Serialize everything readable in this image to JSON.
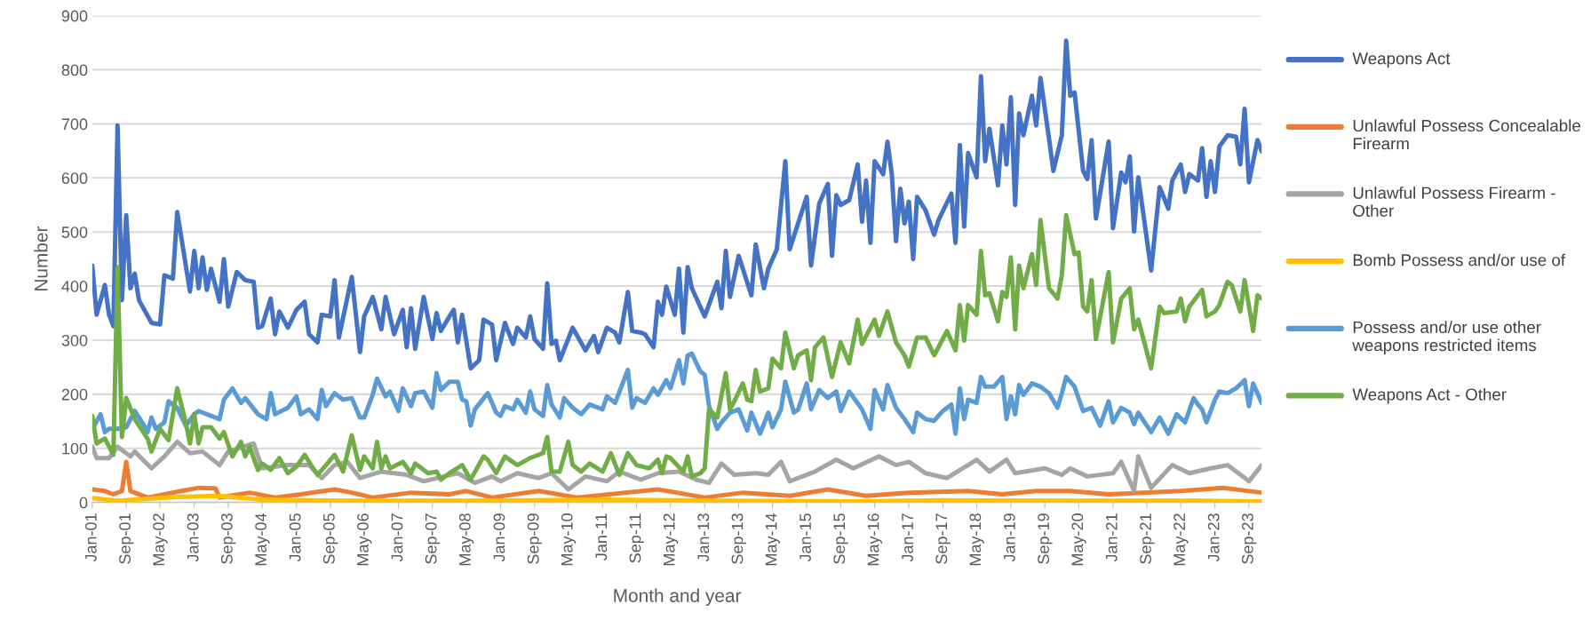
{
  "chart_data": {
    "type": "line",
    "xlabel": "Month and year",
    "ylabel": "Number",
    "ylim": [
      0,
      900
    ],
    "yticks": [
      0,
      100,
      200,
      300,
      400,
      500,
      600,
      700,
      800,
      900
    ],
    "xlim": [
      "2001-01",
      "2023-12"
    ],
    "xticks": [
      {
        "value": "2001-01",
        "label": "Jan-01"
      },
      {
        "value": "2001-09",
        "label": "Sep-01"
      },
      {
        "value": "2002-05",
        "label": "May-02"
      },
      {
        "value": "2003-01",
        "label": "Jan-03"
      },
      {
        "value": "2003-09",
        "label": "Sep-03"
      },
      {
        "value": "2004-05",
        "label": "May-04"
      },
      {
        "value": "2005-01",
        "label": "Jan-05"
      },
      {
        "value": "2005-09",
        "label": "Sep-05"
      },
      {
        "value": "2006-05",
        "label": "May-06"
      },
      {
        "value": "2007-01",
        "label": "Jan-07"
      },
      {
        "value": "2007-09",
        "label": "Sep-07"
      },
      {
        "value": "2008-05",
        "label": "May-08"
      },
      {
        "value": "2009-01",
        "label": "Jan-09"
      },
      {
        "value": "2009-09",
        "label": "Sep-09"
      },
      {
        "value": "2010-05",
        "label": "May-10"
      },
      {
        "value": "2011-01",
        "label": "Jan-11"
      },
      {
        "value": "2011-09",
        "label": "Sep-11"
      },
      {
        "value": "2012-05",
        "label": "May-12"
      },
      {
        "value": "2013-01",
        "label": "Jan-13"
      },
      {
        "value": "2013-09",
        "label": "Sep-13"
      },
      {
        "value": "2014-05",
        "label": "May-14"
      },
      {
        "value": "2015-01",
        "label": "Jan-15"
      },
      {
        "value": "2015-09",
        "label": "Sep-15"
      },
      {
        "value": "2016-05",
        "label": "May-16"
      },
      {
        "value": "2017-01",
        "label": "Jan-17"
      },
      {
        "value": "2017-09",
        "label": "Sep-17"
      },
      {
        "value": "2018-05",
        "label": "May-18"
      },
      {
        "value": "2019-01",
        "label": "Jan-19"
      },
      {
        "value": "2019-09",
        "label": "Sep-19"
      },
      {
        "value": "2020-05",
        "label": "May-20"
      },
      {
        "value": "2021-01",
        "label": "Jan-21"
      },
      {
        "value": "2021-09",
        "label": "Sep-21"
      },
      {
        "value": "2022-05",
        "label": "May-22"
      },
      {
        "value": "2023-01",
        "label": "Jan-23"
      },
      {
        "value": "2023-09",
        "label": "Sep-23"
      }
    ],
    "grid": "y",
    "legend": "right",
    "marker": "none",
    "line_style": "solid",
    "series": [
      {
        "name": "Weapons Act",
        "color": "#4472c4",
        "x": [
          "2001-01",
          "2001-02",
          "2001-04",
          "2001-05",
          "2001-06",
          "2001-07",
          "2001-08",
          "2001-09",
          "2001-10",
          "2001-11",
          "2001-12",
          "2002-03",
          "2002-05",
          "2002-06",
          "2002-08",
          "2002-09",
          "2002-12",
          "2003-01",
          "2003-02",
          "2003-03",
          "2003-04",
          "2003-05",
          "2003-07",
          "2003-08",
          "2003-09",
          "2003-11",
          "2004-01",
          "2004-03",
          "2004-04",
          "2004-05",
          "2004-07",
          "2004-08",
          "2004-09",
          "2004-11",
          "2005-01",
          "2005-03",
          "2005-04",
          "2005-06",
          "2005-07",
          "2005-09",
          "2005-10",
          "2005-11",
          "2006-02",
          "2006-04",
          "2006-05",
          "2006-07",
          "2006-09",
          "2006-10",
          "2006-12",
          "2007-02",
          "2007-03",
          "2007-04",
          "2007-05",
          "2007-07",
          "2007-09",
          "2007-10",
          "2007-11",
          "2008-01",
          "2008-02",
          "2008-03",
          "2008-04",
          "2008-06",
          "2008-08",
          "2008-09",
          "2008-11",
          "2008-12",
          "2009-02",
          "2009-04",
          "2009-05",
          "2009-07",
          "2009-08",
          "2009-09",
          "2009-11",
          "2009-12",
          "2010-01",
          "2010-02",
          "2010-03",
          "2010-06",
          "2010-09",
          "2010-11",
          "2010-12",
          "2011-02",
          "2011-04",
          "2011-05",
          "2011-07",
          "2011-08",
          "2011-10",
          "2011-11",
          "2012-01",
          "2012-02",
          "2012-03",
          "2012-04",
          "2012-06",
          "2012-07",
          "2012-08",
          "2012-09",
          "2012-10",
          "2013-01",
          "2013-04",
          "2013-05",
          "2013-06",
          "2013-07",
          "2013-09",
          "2013-12",
          "2014-01",
          "2014-03",
          "2014-04",
          "2014-06",
          "2014-08",
          "2014-09",
          "2015-01",
          "2015-02",
          "2015-04",
          "2015-06",
          "2015-07",
          "2015-08",
          "2015-09",
          "2015-11",
          "2016-01",
          "2016-02",
          "2016-03",
          "2016-04",
          "2016-05",
          "2016-07",
          "2016-08",
          "2016-09",
          "2016-10",
          "2016-11",
          "2016-12",
          "2017-01",
          "2017-02",
          "2017-03",
          "2017-05",
          "2017-07",
          "2017-08",
          "2017-11",
          "2017-12",
          "2018-01",
          "2018-02",
          "2018-03",
          "2018-05",
          "2018-06",
          "2018-07",
          "2018-08",
          "2018-10",
          "2018-11",
          "2018-12",
          "2019-01",
          "2019-02",
          "2019-03",
          "2019-04",
          "2019-06",
          "2019-07",
          "2019-08",
          "2019-10",
          "2019-11",
          "2020-01",
          "2020-02",
          "2020-03",
          "2020-04",
          "2020-06",
          "2020-07",
          "2020-08",
          "2020-09",
          "2020-12",
          "2021-01",
          "2021-03",
          "2021-04",
          "2021-05",
          "2021-06",
          "2021-07",
          "2021-10",
          "2021-12",
          "2022-02",
          "2022-03",
          "2022-05",
          "2022-06",
          "2022-07",
          "2022-09",
          "2022-10",
          "2022-11",
          "2022-12",
          "2023-01",
          "2023-02",
          "2023-04",
          "2023-06",
          "2023-07",
          "2023-08",
          "2023-09",
          "2023-11",
          "2023-12"
        ],
        "values": [
          438,
          347,
          402,
          347,
          326,
          697,
          374,
          531,
          396,
          423,
          374,
          332,
          329,
          420,
          414,
          537,
          390,
          465,
          396,
          453,
          393,
          432,
          371,
          450,
          362,
          426,
          411,
          408,
          323,
          326,
          377,
          311,
          353,
          323,
          356,
          371,
          311,
          296,
          347,
          344,
          411,
          305,
          417,
          278,
          344,
          380,
          320,
          380,
          311,
          356,
          287,
          359,
          284,
          380,
          302,
          350,
          317,
          344,
          356,
          296,
          347,
          248,
          263,
          338,
          329,
          263,
          332,
          293,
          323,
          305,
          344,
          302,
          284,
          405,
          293,
          299,
          263,
          323,
          281,
          308,
          278,
          323,
          314,
          296,
          389,
          317,
          314,
          311,
          287,
          371,
          347,
          399,
          347,
          432,
          314,
          435,
          396,
          344,
          408,
          359,
          465,
          380,
          456,
          383,
          477,
          396,
          432,
          468,
          631,
          468,
          565,
          438,
          553,
          589,
          456,
          568,
          550,
          559,
          625,
          519,
          595,
          480,
          631,
          607,
          667,
          607,
          483,
          580,
          516,
          556,
          450,
          565,
          540,
          495,
          522,
          571,
          480,
          661,
          510,
          646,
          601,
          788,
          631,
          691,
          586,
          697,
          625,
          749,
          550,
          719,
          679,
          752,
          697,
          785,
          673,
          613,
          679,
          854,
          752,
          758,
          613,
          598,
          670,
          525,
          667,
          507,
          610,
          592,
          640,
          501,
          601,
          429,
          583,
          543,
          595,
          625,
          574,
          607,
          595,
          655,
          565,
          631,
          574,
          658,
          679,
          676,
          625,
          728,
          592,
          670,
          649
        ]
      },
      {
        "name": "Unlawful Possess Concealable Firearm",
        "color": "#ed7d31",
        "x": [
          "2001-01",
          "2001-04",
          "2001-06",
          "2001-08",
          "2001-09",
          "2001-10",
          "2002-02",
          "2002-10",
          "2003-02",
          "2003-06",
          "2003-07",
          "2004-02",
          "2004-08",
          "2005-02",
          "2005-10",
          "2006-02",
          "2006-07",
          "2007-04",
          "2008-01",
          "2008-05",
          "2008-11",
          "2009-10",
          "2010-07",
          "2012-02",
          "2013-01",
          "2013-10",
          "2014-09",
          "2015-06",
          "2016-03",
          "2017-01",
          "2018-03",
          "2018-11",
          "2019-07",
          "2020-03",
          "2020-12",
          "2022-05",
          "2023-03",
          "2023-12"
        ],
        "values": [
          24,
          21,
          15,
          21,
          75,
          21,
          9,
          21,
          27,
          26,
          9,
          18,
          9,
          15,
          24,
          18,
          9,
          18,
          15,
          21,
          9,
          21,
          9,
          24,
          9,
          18,
          12,
          24,
          12,
          18,
          21,
          15,
          21,
          21,
          15,
          21,
          27,
          18
        ]
      },
      {
        "name": "Unlawful Possess Firearm - Other",
        "color": "#a5a5a5",
        "x": [
          "2001-01",
          "2001-02",
          "2001-05",
          "2001-07",
          "2001-10",
          "2001-11",
          "2002-03",
          "2002-06",
          "2002-09",
          "2002-12",
          "2003-03",
          "2003-07",
          "2003-09",
          "2004-03",
          "2004-05",
          "2004-11",
          "2005-04",
          "2005-07",
          "2005-10",
          "2006-01",
          "2006-04",
          "2006-09",
          "2007-03",
          "2007-07",
          "2008-03",
          "2008-07",
          "2008-11",
          "2009-01",
          "2009-05",
          "2009-10",
          "2010-01",
          "2010-05",
          "2010-09",
          "2011-02",
          "2011-05",
          "2011-10",
          "2012-02",
          "2012-07",
          "2012-11",
          "2013-02",
          "2013-05",
          "2013-08",
          "2014-01",
          "2014-04",
          "2014-07",
          "2014-09",
          "2015-03",
          "2015-08",
          "2015-12",
          "2016-06",
          "2016-10",
          "2017-01",
          "2017-05",
          "2017-10",
          "2018-05",
          "2018-08",
          "2018-12",
          "2019-02",
          "2019-09",
          "2020-01",
          "2020-03",
          "2020-07",
          "2021-01",
          "2021-03",
          "2021-06",
          "2021-07",
          "2021-10",
          "2022-03",
          "2022-07",
          "2022-12",
          "2023-04",
          "2023-09",
          "2023-12"
        ],
        "values": [
          103,
          82,
          82,
          103,
          85,
          94,
          63,
          85,
          112,
          91,
          94,
          69,
          94,
          109,
          63,
          69,
          69,
          45,
          69,
          75,
          45,
          57,
          51,
          39,
          54,
          36,
          48,
          39,
          54,
          45,
          54,
          24,
          48,
          39,
          57,
          42,
          54,
          57,
          42,
          36,
          72,
          51,
          54,
          51,
          75,
          39,
          57,
          79,
          63,
          85,
          69,
          75,
          54,
          45,
          79,
          57,
          79,
          54,
          63,
          51,
          63,
          48,
          54,
          75,
          21,
          85,
          27,
          69,
          54,
          63,
          69,
          39,
          69
        ]
      },
      {
        "name": "Bomb Possess and/or use of",
        "color": "#ffc000",
        "x": [
          "2001-01",
          "2001-07",
          "2002-09",
          "2003-07",
          "2004-05",
          "2006-01",
          "2008-07",
          "2011-01",
          "2013-07",
          "2016-01",
          "2017-09",
          "2020-03",
          "2022-09",
          "2023-12"
        ],
        "values": [
          8,
          3,
          10,
          12,
          5,
          3,
          3,
          5,
          3,
          2,
          4,
          3,
          3,
          2
        ]
      },
      {
        "name": "Possess and/or use other weapons restricted items",
        "color": "#5b9bd5",
        "x": [
          "2001-01",
          "2001-03",
          "2001-04",
          "2001-05",
          "2001-07",
          "2001-09",
          "2001-11",
          "2002-01",
          "2002-02",
          "2002-03",
          "2002-04",
          "2002-06",
          "2002-07",
          "2002-09",
          "2002-11",
          "2003-01",
          "2003-02",
          "2003-04",
          "2003-07",
          "2003-08",
          "2003-10",
          "2003-12",
          "2004-01",
          "2004-04",
          "2004-06",
          "2004-07",
          "2004-08",
          "2004-11",
          "2005-01",
          "2005-02",
          "2005-04",
          "2005-06",
          "2005-07",
          "2005-08",
          "2005-10",
          "2005-12",
          "2006-02",
          "2006-04",
          "2006-05",
          "2006-07",
          "2006-08",
          "2006-10",
          "2006-11",
          "2007-01",
          "2007-02",
          "2007-04",
          "2007-05",
          "2007-07",
          "2007-09",
          "2007-10",
          "2007-11",
          "2008-01",
          "2008-03",
          "2008-04",
          "2008-05",
          "2008-06",
          "2008-07",
          "2008-10",
          "2008-11",
          "2008-12",
          "2009-01",
          "2009-02",
          "2009-04",
          "2009-05",
          "2009-07",
          "2009-08",
          "2009-09",
          "2009-11",
          "2009-12",
          "2010-01",
          "2010-03",
          "2010-04",
          "2010-06",
          "2010-08",
          "2010-10",
          "2011-01",
          "2011-02",
          "2011-04",
          "2011-07",
          "2011-08",
          "2011-09",
          "2011-11",
          "2012-01",
          "2012-02",
          "2012-04",
          "2012-05",
          "2012-07",
          "2012-08",
          "2012-09",
          "2012-10",
          "2012-12",
          "2013-01",
          "2013-02",
          "2013-04",
          "2013-05",
          "2013-07",
          "2013-09",
          "2013-11",
          "2013-12",
          "2014-02",
          "2014-04",
          "2014-05",
          "2014-07",
          "2014-08",
          "2014-10",
          "2014-11",
          "2015-01",
          "2015-02",
          "2015-04",
          "2015-06",
          "2015-08",
          "2015-09",
          "2015-11",
          "2016-02",
          "2016-04",
          "2016-05",
          "2016-07",
          "2016-08",
          "2016-10",
          "2016-12",
          "2017-02",
          "2017-03",
          "2017-05",
          "2017-07",
          "2017-09",
          "2017-11",
          "2017-12",
          "2018-01",
          "2018-02",
          "2018-03",
          "2018-05",
          "2018-06",
          "2018-07",
          "2018-09",
          "2018-11",
          "2018-12",
          "2019-01",
          "2019-02",
          "2019-03",
          "2019-04",
          "2019-06",
          "2019-08",
          "2019-10",
          "2019-12",
          "2020-01",
          "2020-02",
          "2020-04",
          "2020-06",
          "2020-08",
          "2020-10",
          "2020-12",
          "2021-01",
          "2021-03",
          "2021-05",
          "2021-06",
          "2021-07",
          "2021-10",
          "2021-12",
          "2022-02",
          "2022-04",
          "2022-06",
          "2022-08",
          "2022-09",
          "2022-10",
          "2022-11",
          "2023-01",
          "2023-02",
          "2023-04",
          "2023-06",
          "2023-08",
          "2023-09",
          "2023-10",
          "2023-12"
        ],
        "values": [
          135,
          163,
          130,
          136,
          136,
          139,
          169,
          145,
          130,
          157,
          136,
          148,
          187,
          175,
          142,
          163,
          169,
          163,
          154,
          190,
          211,
          184,
          193,
          163,
          154,
          202,
          163,
          175,
          196,
          163,
          172,
          154,
          208,
          178,
          202,
          190,
          193,
          157,
          157,
          199,
          229,
          196,
          205,
          169,
          211,
          178,
          202,
          205,
          175,
          239,
          208,
          223,
          223,
          190,
          187,
          142,
          172,
          202,
          184,
          166,
          160,
          178,
          172,
          190,
          166,
          205,
          172,
          160,
          217,
          181,
          157,
          193,
          175,
          163,
          181,
          172,
          196,
          184,
          245,
          175,
          193,
          184,
          211,
          199,
          226,
          211,
          263,
          220,
          272,
          275,
          242,
          236,
          178,
          136,
          148,
          166,
          172,
          133,
          166,
          127,
          166,
          139,
          172,
          223,
          166,
          172,
          220,
          172,
          208,
          193,
          205,
          169,
          205,
          172,
          136,
          208,
          172,
          217,
          175,
          154,
          130,
          166,
          154,
          151,
          169,
          181,
          127,
          211,
          154,
          190,
          184,
          232,
          214,
          214,
          232,
          154,
          196,
          163,
          217,
          199,
          220,
          214,
          202,
          175,
          202,
          232,
          214,
          169,
          175,
          142,
          187,
          148,
          175,
          166,
          145,
          166,
          130,
          157,
          127,
          163,
          148,
          193,
          181,
          172,
          148,
          190,
          205,
          202,
          211,
          226,
          178,
          220,
          184
        ]
      },
      {
        "name": "Weapons Act - Other",
        "color": "#70ad47",
        "x": [
          "2001-01",
          "2001-02",
          "2001-04",
          "2001-06",
          "2001-07",
          "2001-08",
          "2001-09",
          "2001-11",
          "2002-02",
          "2002-03",
          "2002-05",
          "2002-07",
          "2002-09",
          "2002-11",
          "2002-12",
          "2003-01",
          "2003-02",
          "2003-03",
          "2003-05",
          "2003-07",
          "2003-08",
          "2003-10",
          "2003-12",
          "2004-01",
          "2004-02",
          "2004-04",
          "2004-05",
          "2004-07",
          "2004-09",
          "2004-11",
          "2005-01",
          "2005-03",
          "2005-05",
          "2005-06",
          "2005-08",
          "2005-10",
          "2005-12",
          "2006-02",
          "2006-04",
          "2006-05",
          "2006-07",
          "2006-08",
          "2006-09",
          "2006-10",
          "2006-11",
          "2007-02",
          "2007-04",
          "2007-05",
          "2007-08",
          "2007-10",
          "2007-11",
          "2008-01",
          "2008-04",
          "2008-06",
          "2008-09",
          "2008-10",
          "2008-12",
          "2009-02",
          "2009-05",
          "2009-08",
          "2009-11",
          "2009-12",
          "2010-01",
          "2010-03",
          "2010-05",
          "2010-06",
          "2010-08",
          "2010-10",
          "2011-01",
          "2011-03",
          "2011-05",
          "2011-07",
          "2011-09",
          "2011-12",
          "2012-02",
          "2012-03",
          "2012-04",
          "2012-05",
          "2012-08",
          "2012-09",
          "2012-10",
          "2012-12",
          "2013-01",
          "2013-02",
          "2013-04",
          "2013-06",
          "2013-07",
          "2013-08",
          "2013-10",
          "2013-11",
          "2013-12",
          "2014-01",
          "2014-02",
          "2014-04",
          "2014-05",
          "2014-07",
          "2014-08",
          "2014-10",
          "2014-11",
          "2015-01",
          "2015-02",
          "2015-03",
          "2015-05",
          "2015-07",
          "2015-09",
          "2015-11",
          "2016-01",
          "2016-02",
          "2016-05",
          "2016-06",
          "2016-08",
          "2016-10",
          "2016-12",
          "2017-01",
          "2017-03",
          "2017-05",
          "2017-07",
          "2017-10",
          "2017-12",
          "2018-01",
          "2018-02",
          "2018-03",
          "2018-05",
          "2018-06",
          "2018-07",
          "2018-08",
          "2018-10",
          "2018-11",
          "2018-12",
          "2019-01",
          "2019-02",
          "2019-03",
          "2019-04",
          "2019-06",
          "2019-07",
          "2019-08",
          "2019-10",
          "2019-12",
          "2020-01",
          "2020-02",
          "2020-04",
          "2020-05",
          "2020-06",
          "2020-07",
          "2020-08",
          "2020-09",
          "2020-12",
          "2021-01",
          "2021-03",
          "2021-05",
          "2021-06",
          "2021-07",
          "2021-10",
          "2021-12",
          "2022-01",
          "2022-04",
          "2022-05",
          "2022-06",
          "2022-07",
          "2022-10",
          "2022-11",
          "2023-01",
          "2023-02",
          "2023-04",
          "2023-05",
          "2023-07",
          "2023-08",
          "2023-10",
          "2023-11",
          "2023-12"
        ],
        "values": [
          160,
          109,
          118,
          88,
          435,
          121,
          193,
          154,
          118,
          94,
          136,
          115,
          211,
          148,
          109,
          163,
          109,
          139,
          139,
          118,
          130,
          85,
          112,
          85,
          103,
          60,
          72,
          60,
          82,
          54,
          66,
          88,
          63,
          51,
          69,
          88,
          57,
          124,
          60,
          85,
          63,
          112,
          63,
          85,
          63,
          75,
          54,
          72,
          54,
          57,
          42,
          54,
          69,
          42,
          85,
          79,
          54,
          85,
          69,
          82,
          91,
          121,
          57,
          57,
          112,
          69,
          57,
          72,
          57,
          91,
          51,
          91,
          69,
          63,
          79,
          54,
          85,
          82,
          57,
          85,
          48,
          54,
          63,
          172,
          157,
          239,
          172,
          187,
          220,
          190,
          187,
          245,
          205,
          211,
          266,
          248,
          314,
          248,
          272,
          281,
          226,
          287,
          305,
          232,
          296,
          257,
          338,
          293,
          338,
          308,
          353,
          296,
          272,
          251,
          305,
          305,
          272,
          317,
          281,
          365,
          299,
          365,
          347,
          465,
          383,
          387,
          335,
          389,
          380,
          453,
          320,
          438,
          396,
          459,
          402,
          522,
          396,
          377,
          420,
          531,
          459,
          462,
          362,
          353,
          411,
          302,
          426,
          296,
          377,
          396,
          320,
          338,
          248,
          362,
          350,
          353,
          377,
          335,
          362,
          393,
          344,
          353,
          365,
          408,
          402,
          353,
          411,
          317,
          383,
          377
        ]
      }
    ]
  }
}
